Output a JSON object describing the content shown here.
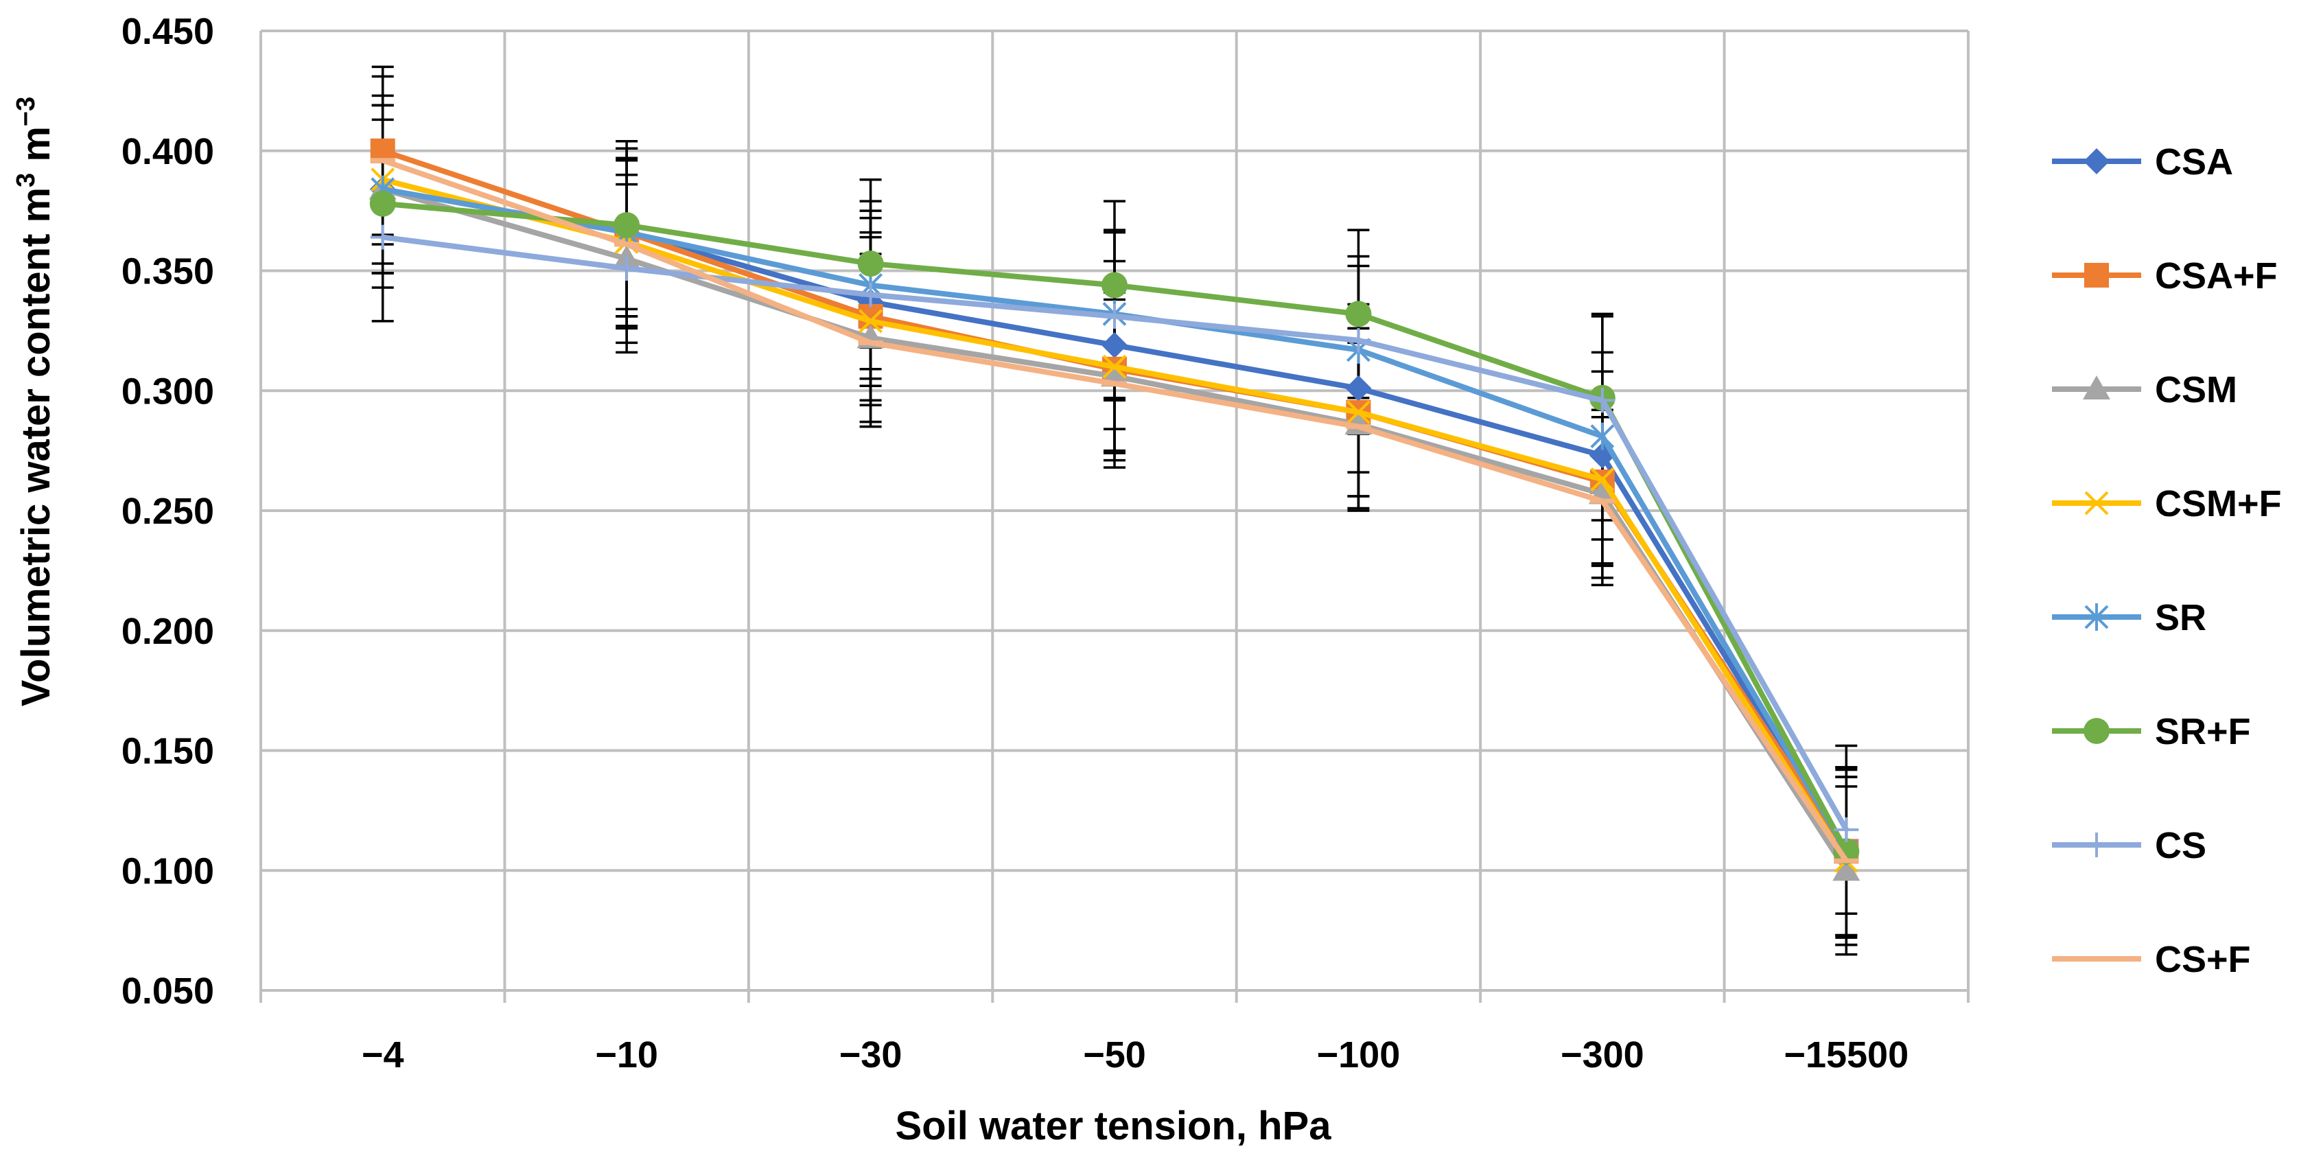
{
  "chart_data": {
    "type": "line",
    "xlabel": "Soil water tension, hPa",
    "ylabel": "Volumetric water content m",
    "ylabel_parts": {
      "base": "Volumetric water content m",
      "sup1": "3",
      "mid": " m",
      "sup2": "−3"
    },
    "categories": [
      "−4",
      "−10",
      "−30",
      "−50",
      "−100",
      "−300",
      "−15500"
    ],
    "ylim": [
      0.05,
      0.45
    ],
    "ytick_labels": [
      "0.050",
      "0.100",
      "0.150",
      "0.200",
      "0.250",
      "0.300",
      "0.350",
      "0.400",
      "0.450"
    ],
    "ytick_values": [
      0.05,
      0.1,
      0.15,
      0.2,
      0.25,
      0.3,
      0.35,
      0.4,
      0.45
    ],
    "grid": true,
    "legend_position": "right",
    "series": [
      {
        "name": "CSA",
        "color": "#4472C4",
        "marker": "diamond",
        "values": [
          0.384,
          0.366,
          0.337,
          0.319,
          0.301,
          0.273,
          0.107
        ],
        "errors": [
          0.035,
          0.035,
          0.035,
          0.035,
          0.035,
          0.035,
          0.035
        ]
      },
      {
        "name": "CSA+F",
        "color": "#ED7D31",
        "marker": "square",
        "values": [
          0.4,
          0.366,
          0.331,
          0.309,
          0.291,
          0.262,
          0.108
        ],
        "errors": [
          0.035,
          0.035,
          0.035,
          0.035,
          0.035,
          0.035,
          0.035
        ]
      },
      {
        "name": "CSM",
        "color": "#A5A5A5",
        "marker": "triangle",
        "values": [
          0.384,
          0.355,
          0.322,
          0.306,
          0.286,
          0.257,
          0.1
        ],
        "errors": [
          0.035,
          0.035,
          0.035,
          0.035,
          0.035,
          0.035,
          0.035
        ]
      },
      {
        "name": "CSM+F",
        "color": "#FFC000",
        "marker": "x",
        "values": [
          0.388,
          0.362,
          0.329,
          0.31,
          0.291,
          0.263,
          0.104
        ],
        "errors": [
          0.035,
          0.035,
          0.035,
          0.035,
          0.035,
          0.035,
          0.035
        ]
      },
      {
        "name": "SR",
        "color": "#5B9BD5",
        "marker": "star",
        "values": [
          0.384,
          0.366,
          0.344,
          0.332,
          0.317,
          0.281,
          0.108
        ],
        "errors": [
          0.035,
          0.035,
          0.035,
          0.035,
          0.035,
          0.035,
          0.035
        ]
      },
      {
        "name": "SR+F",
        "color": "#70AD47",
        "marker": "circle",
        "values": [
          0.378,
          0.369,
          0.353,
          0.344,
          0.332,
          0.297,
          0.108
        ],
        "errors": [
          0.035,
          0.035,
          0.035,
          0.035,
          0.035,
          0.035,
          0.035
        ]
      },
      {
        "name": "CS",
        "color": "#8EA9DB",
        "marker": "plus",
        "values": [
          0.364,
          0.351,
          0.34,
          0.331,
          0.321,
          0.296,
          0.117
        ],
        "errors": [
          0.035,
          0.035,
          0.035,
          0.035,
          0.035,
          0.035,
          0.035
        ]
      },
      {
        "name": "CS+F",
        "color": "#F4B183",
        "marker": "dash",
        "values": [
          0.396,
          0.361,
          0.32,
          0.303,
          0.285,
          0.254,
          0.104
        ],
        "errors": [
          0.035,
          0.035,
          0.035,
          0.035,
          0.035,
          0.035,
          0.035
        ]
      }
    ]
  }
}
